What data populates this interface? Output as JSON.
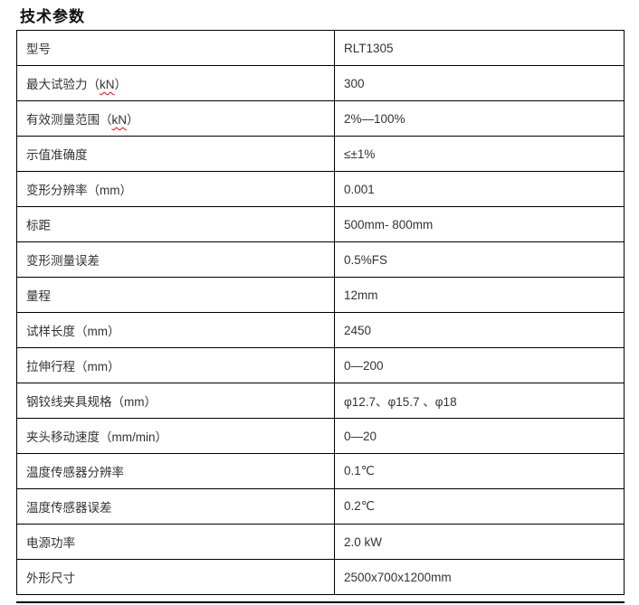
{
  "page": {
    "title": "技术参数"
  },
  "colors": {
    "border": "#000000",
    "text": "#333333",
    "misspell_underline": "#ff0000",
    "background": "#ffffff"
  },
  "table": {
    "rows": [
      {
        "label": "型号",
        "value": "RLT1305"
      },
      {
        "label": "最大试验力（kN）",
        "mark": "kN",
        "value": "300"
      },
      {
        "label": "有效测量范围（kN）",
        "mark": "kN",
        "value": "2%—100%"
      },
      {
        "label": "示值准确度",
        "value": "≤±1%"
      },
      {
        "label": "变形分辨率（mm）",
        "value": "0.001"
      },
      {
        "label": "标距",
        "value": "500mm- 800mm"
      },
      {
        "label": "变形测量误差",
        "value": "0.5%FS"
      },
      {
        "label": "量程",
        "value": "12mm"
      },
      {
        "label": "试样长度（mm）",
        "value": "2450"
      },
      {
        "label": "拉伸行程（mm）",
        "value": "0—200"
      },
      {
        "label": "钢铰线夹具规格（mm）",
        "value": "φ12.7、φ15.7 、φ18"
      },
      {
        "label": "夹头移动速度（mm/min）",
        "value": "0—20"
      },
      {
        "label": "温度传感器分辨率",
        "value": "0.1℃"
      },
      {
        "label": "温度传感器误差",
        "value": "0.2℃"
      },
      {
        "label": "电源功率",
        "value": "2.0 kW"
      },
      {
        "label": "外形尺寸",
        "value": "2500x700x1200mm"
      }
    ]
  }
}
